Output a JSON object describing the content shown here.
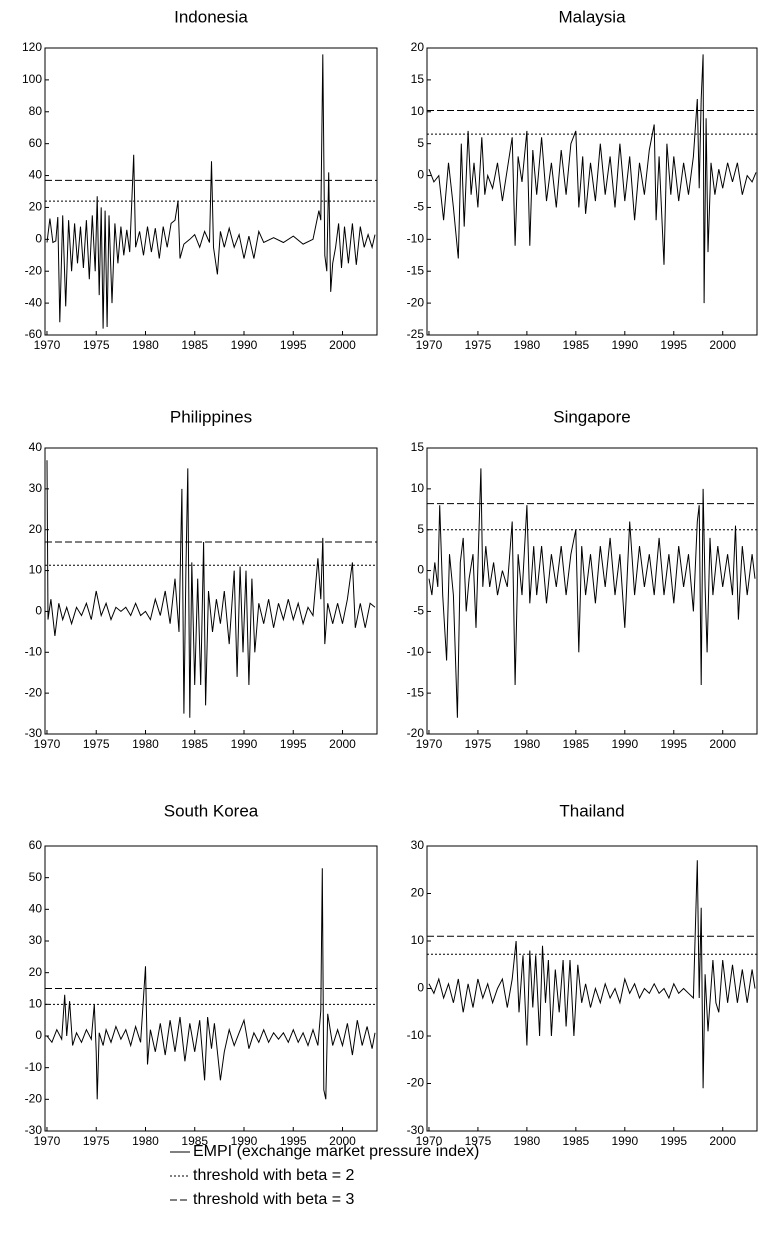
{
  "legend_entries": [
    "EMPI (exchange market pressure index)",
    "threshold with beta = 2",
    "threshold with beta = 3"
  ],
  "color": "#000000",
  "chart_data": [
    {
      "type": "line",
      "title": "Indonesia",
      "xlim": [
        1969.8,
        2003.5
      ],
      "xticks": [
        1970,
        1975,
        1980,
        1985,
        1990,
        1995,
        2000
      ],
      "ylim": [
        -60,
        120
      ],
      "yticks": [
        -60,
        -40,
        -20,
        0,
        20,
        40,
        60,
        80,
        100,
        120
      ],
      "threshold_beta2": 24,
      "threshold_beta3": 37,
      "x": [
        1970.0,
        1970.3,
        1970.6,
        1970.9,
        1971.1,
        1971.3,
        1971.6,
        1971.9,
        1972.2,
        1972.5,
        1972.8,
        1973.1,
        1973.4,
        1973.7,
        1974.0,
        1974.3,
        1974.6,
        1974.9,
        1975.1,
        1975.3,
        1975.5,
        1975.7,
        1975.9,
        1976.1,
        1976.3,
        1976.6,
        1976.9,
        1977.2,
        1977.5,
        1977.8,
        1978.1,
        1978.4,
        1978.8,
        1979.0,
        1979.4,
        1979.8,
        1980.2,
        1980.6,
        1981.0,
        1981.4,
        1981.8,
        1982.2,
        1982.6,
        1983.0,
        1983.3,
        1983.5,
        1983.9,
        1984.5,
        1985.0,
        1985.5,
        1986.0,
        1986.5,
        1986.7,
        1986.9,
        1987.3,
        1987.6,
        1988.0,
        1988.5,
        1989.0,
        1989.5,
        1990.0,
        1990.5,
        1991.0,
        1991.5,
        1992.0,
        1993.0,
        1994.0,
        1995.0,
        1996.0,
        1997.0,
        1997.6,
        1997.8,
        1998.0,
        1998.2,
        1998.4,
        1998.6,
        1998.8,
        1999.0,
        1999.3,
        1999.6,
        1999.9,
        2000.2,
        2000.6,
        2001.0,
        2001.4,
        2001.8,
        2002.2,
        2002.6,
        2003.0,
        2003.3
      ],
      "values": [
        -2,
        13,
        -2,
        -1,
        14,
        -52,
        15,
        -42,
        12,
        -20,
        10,
        -15,
        8,
        -18,
        12,
        -25,
        15,
        -20,
        27,
        -35,
        20,
        -56,
        18,
        -55,
        15,
        -40,
        10,
        -15,
        8,
        -10,
        6,
        -8,
        53,
        -5,
        5,
        -10,
        8,
        -8,
        7,
        -12,
        8,
        -5,
        10,
        12,
        24,
        -12,
        -3,
        0,
        3,
        -5,
        5,
        -2,
        49,
        -5,
        -22,
        5,
        -5,
        7,
        -5,
        3,
        -12,
        2,
        -12,
        5,
        -2,
        1,
        -2,
        2,
        -3,
        0,
        18,
        12,
        116,
        -10,
        -20,
        42,
        -33,
        -15,
        -5,
        10,
        -18,
        8,
        -15,
        10,
        -16,
        8,
        -5,
        3,
        -5,
        3
      ]
    },
    {
      "type": "line",
      "title": "Malaysia",
      "xlim": [
        1969.8,
        2003.5
      ],
      "xticks": [
        1970,
        1975,
        1980,
        1985,
        1990,
        1995,
        2000
      ],
      "ylim": [
        -25,
        20
      ],
      "yticks": [
        -25,
        -20,
        -15,
        -10,
        -5,
        0,
        5,
        10,
        15,
        20
      ],
      "threshold_beta2": 6.5,
      "threshold_beta3": 10.2,
      "x": [
        1970,
        1970.5,
        1971,
        1971.5,
        1972,
        1972.5,
        1973,
        1973.3,
        1973.6,
        1974,
        1974.3,
        1974.6,
        1975,
        1975.4,
        1975.7,
        1976,
        1976.5,
        1977,
        1977.5,
        1978,
        1978.5,
        1978.8,
        1979.1,
        1979.5,
        1980,
        1980.3,
        1980.6,
        1981,
        1981.5,
        1982,
        1982.5,
        1983,
        1983.5,
        1984,
        1984.5,
        1985,
        1985.3,
        1985.7,
        1986,
        1986.5,
        1987,
        1987.5,
        1988,
        1988.5,
        1989,
        1989.5,
        1990,
        1990.5,
        1991,
        1991.5,
        1992,
        1992.5,
        1993,
        1993.2,
        1993.5,
        1994,
        1994.3,
        1994.7,
        1995,
        1995.5,
        1996,
        1996.5,
        1997,
        1997.4,
        1997.6,
        1997.8,
        1998,
        1998.1,
        1998.3,
        1998.5,
        1998.8,
        1999.2,
        1999.6,
        2000,
        2000.5,
        2001,
        2001.5,
        2002,
        2002.5,
        2003,
        2003.4
      ],
      "values": [
        1,
        -1,
        0,
        -7,
        2,
        -5,
        -13,
        5,
        -8,
        7,
        -3,
        2,
        -5,
        6,
        -3,
        0,
        -2,
        2,
        -4,
        1,
        6,
        -11,
        3,
        -1,
        7,
        -11,
        4,
        -3,
        6,
        -4,
        2,
        -5,
        4,
        -3,
        5,
        7,
        -5,
        3,
        -6,
        2,
        -4,
        5,
        -3,
        3,
        -5,
        5,
        -4,
        3,
        -7,
        2,
        -3,
        4,
        8,
        -7,
        3,
        -14,
        5,
        -3,
        3,
        -4,
        2,
        -3,
        3,
        12,
        -2,
        12,
        19,
        -20,
        9,
        -12,
        2,
        -3,
        1,
        -2,
        2,
        -1,
        2,
        -3,
        0,
        -1,
        0.5
      ]
    },
    {
      "type": "line",
      "title": "Philippines",
      "xlim": [
        1969.8,
        2003.5
      ],
      "xticks": [
        1970,
        1975,
        1980,
        1985,
        1990,
        1995,
        2000
      ],
      "ylim": [
        -30,
        40
      ],
      "yticks": [
        -30,
        -20,
        -10,
        0,
        10,
        20,
        30,
        40
      ],
      "threshold_beta2": 11.3,
      "threshold_beta3": 17,
      "x": [
        1970,
        1970.1,
        1970.4,
        1970.8,
        1971.2,
        1971.6,
        1972,
        1972.5,
        1973,
        1973.5,
        1974,
        1974.5,
        1975,
        1975.5,
        1976,
        1976.5,
        1977,
        1977.5,
        1978,
        1978.5,
        1979,
        1979.5,
        1980,
        1980.5,
        1981,
        1981.5,
        1982,
        1982.5,
        1983,
        1983.4,
        1983.7,
        1983.9,
        1984.1,
        1984.3,
        1984.5,
        1984.7,
        1985,
        1985.3,
        1985.6,
        1985.9,
        1986.1,
        1986.4,
        1986.8,
        1987.2,
        1987.6,
        1988,
        1988.5,
        1989,
        1989.3,
        1989.6,
        1989.9,
        1990.2,
        1990.5,
        1990.8,
        1991.1,
        1991.5,
        1992,
        1992.5,
        1993,
        1993.5,
        1994,
        1994.5,
        1995,
        1995.5,
        1996,
        1996.5,
        1997,
        1997.5,
        1997.8,
        1998,
        1998.2,
        1998.5,
        1999,
        1999.5,
        2000,
        2000.5,
        2001,
        2001.3,
        2001.8,
        2002.3,
        2002.8,
        2003.3
      ],
      "values": [
        37,
        -2,
        3,
        -6,
        2,
        -2,
        1,
        -3,
        1,
        -1,
        2,
        -2,
        5,
        -1,
        2,
        -2,
        1,
        0,
        1,
        -1,
        2,
        -1,
        0,
        -2,
        3,
        -1,
        5,
        -3,
        8,
        -5,
        30,
        -25,
        10,
        35,
        -26,
        12,
        -18,
        8,
        -18,
        17,
        -23,
        5,
        -5,
        3,
        -3,
        5,
        -8,
        10,
        -16,
        11,
        -10,
        10,
        -18,
        8,
        -10,
        2,
        -3,
        3,
        -4,
        2,
        -2,
        3,
        -2,
        2,
        -3,
        1,
        -1,
        13,
        3,
        18,
        -8,
        2,
        -3,
        2,
        -3,
        3,
        12,
        -4,
        2,
        -4,
        2,
        1
      ]
    },
    {
      "type": "line",
      "title": "Singapore",
      "xlim": [
        1969.8,
        2003.5
      ],
      "xticks": [
        1970,
        1975,
        1980,
        1985,
        1990,
        1995,
        2000
      ],
      "ylim": [
        -20,
        15
      ],
      "yticks": [
        -20,
        -15,
        -10,
        -5,
        0,
        5,
        10,
        15
      ],
      "threshold_beta2": 5,
      "threshold_beta3": 8.2,
      "x": [
        1970,
        1970.3,
        1970.6,
        1970.9,
        1971.1,
        1971.4,
        1971.8,
        1972.1,
        1972.5,
        1972.9,
        1973.2,
        1973.5,
        1973.8,
        1974.1,
        1974.5,
        1974.8,
        1975.3,
        1975.5,
        1975.8,
        1976.2,
        1976.6,
        1977,
        1977.5,
        1978,
        1978.5,
        1978.8,
        1979.1,
        1979.5,
        1980,
        1980.3,
        1980.7,
        1981,
        1981.5,
        1982,
        1982.5,
        1983,
        1983.5,
        1984,
        1984.5,
        1985,
        1985.3,
        1985.6,
        1986,
        1986.5,
        1987,
        1987.5,
        1988,
        1988.5,
        1989,
        1989.5,
        1990,
        1990.5,
        1991,
        1991.5,
        1992,
        1992.5,
        1993,
        1993.5,
        1994,
        1994.5,
        1995,
        1995.5,
        1996,
        1996.5,
        1997,
        1997.4,
        1997.6,
        1997.8,
        1998,
        1998.2,
        1998.4,
        1998.7,
        1999,
        1999.5,
        2000,
        2000.5,
        2001,
        2001.3,
        2001.6,
        2002,
        2002.5,
        2003,
        2003.3
      ],
      "values": [
        -1,
        -3,
        1,
        -2,
        8,
        -3,
        -11,
        2,
        -3,
        -18,
        1,
        4,
        -5,
        -1,
        2,
        -7,
        12.5,
        -2,
        3,
        -2,
        1,
        -3,
        0,
        -2,
        6,
        -14,
        2,
        -3,
        8,
        -4,
        3,
        -3,
        3,
        -4,
        2,
        -2,
        3,
        -3,
        2,
        5,
        -10,
        3,
        -3,
        2,
        -4,
        3,
        -2,
        4,
        -3,
        2,
        -7,
        6,
        -3,
        3,
        -2,
        2,
        -3,
        4,
        -3,
        2,
        -4,
        3,
        -2,
        2,
        -5,
        6,
        8,
        -14,
        10,
        -2,
        -10,
        4,
        -3,
        3,
        -2,
        2,
        -3,
        5.5,
        -6,
        3,
        -3,
        2,
        -1
      ]
    },
    {
      "type": "line",
      "title": "South Korea",
      "xlim": [
        1969.8,
        2003.5
      ],
      "xticks": [
        1970,
        1975,
        1980,
        1985,
        1990,
        1995,
        2000
      ],
      "ylim": [
        -30,
        60
      ],
      "yticks": [
        -30,
        -20,
        -10,
        0,
        10,
        20,
        30,
        40,
        50,
        60
      ],
      "threshold_beta2": 10,
      "threshold_beta3": 15,
      "x": [
        1970,
        1970.5,
        1971,
        1971.5,
        1971.8,
        1972,
        1972.3,
        1972.6,
        1973,
        1973.5,
        1974,
        1974.5,
        1974.8,
        1975,
        1975.1,
        1975.3,
        1975.7,
        1976,
        1976.5,
        1977,
        1977.5,
        1978,
        1978.5,
        1979,
        1979.5,
        1980,
        1980.2,
        1980.5,
        1981,
        1981.5,
        1982,
        1982.5,
        1983,
        1983.5,
        1984,
        1984.5,
        1985,
        1985.5,
        1986,
        1986.3,
        1986.7,
        1987,
        1987.6,
        1988,
        1988.5,
        1989,
        1989.5,
        1990,
        1990.5,
        1991,
        1991.5,
        1992,
        1992.5,
        1993,
        1993.5,
        1994,
        1994.5,
        1995,
        1995.5,
        1996,
        1996.5,
        1997,
        1997.5,
        1997.8,
        1997.95,
        1998.1,
        1998.3,
        1998.5,
        1999,
        1999.5,
        2000,
        2000.5,
        2001,
        2001.5,
        2002,
        2002.5,
        2003,
        2003.3
      ],
      "values": [
        0,
        -2,
        2,
        -1,
        13,
        0,
        11,
        -3,
        1,
        -2,
        2,
        -1,
        10,
        -5,
        -20,
        1,
        -3,
        2,
        -2,
        3,
        -1,
        2,
        -3,
        3,
        -2,
        22,
        -9,
        2,
        -5,
        4,
        -6,
        5,
        -5,
        6,
        -8,
        4,
        -5,
        5,
        -14,
        6,
        -4,
        4,
        -14,
        -5,
        2,
        -3,
        1,
        5,
        -4,
        1,
        -2,
        2,
        -2,
        1,
        -1,
        1,
        -2,
        2,
        -2,
        1,
        -3,
        2,
        -3,
        8,
        53,
        -17,
        -20,
        7,
        -3,
        2,
        -3,
        4,
        -6,
        5,
        -3,
        3,
        -4,
        1
      ]
    },
    {
      "type": "line",
      "title": "Thailand",
      "xlim": [
        1969.8,
        2003.5
      ],
      "xticks": [
        1970,
        1975,
        1980,
        1985,
        1990,
        1995,
        2000
      ],
      "ylim": [
        -30,
        30
      ],
      "yticks": [
        -30,
        -20,
        -10,
        0,
        10,
        20,
        30
      ],
      "threshold_beta2": 7.2,
      "threshold_beta3": 11,
      "x": [
        1970,
        1970.5,
        1971,
        1971.5,
        1972,
        1972.5,
        1973,
        1973.5,
        1974,
        1974.5,
        1975,
        1975.5,
        1976,
        1976.5,
        1977,
        1977.5,
        1978,
        1978.5,
        1978.9,
        1979.2,
        1979.6,
        1980,
        1980.3,
        1980.6,
        1980.9,
        1981.3,
        1981.6,
        1981.9,
        1982.2,
        1982.5,
        1982.9,
        1983.3,
        1983.7,
        1984,
        1984.4,
        1984.8,
        1985.2,
        1985.6,
        1986,
        1986.5,
        1987,
        1987.5,
        1988,
        1988.5,
        1989,
        1989.5,
        1990,
        1990.5,
        1991,
        1991.5,
        1992,
        1992.5,
        1993,
        1993.5,
        1994,
        1994.5,
        1995,
        1995.5,
        1996,
        1996.5,
        1997,
        1997.4,
        1997.6,
        1997.8,
        1998,
        1998.2,
        1998.5,
        1999,
        1999.3,
        1999.6,
        2000,
        2000.5,
        2001,
        2001.5,
        2002,
        2002.5,
        2003,
        2003.3
      ],
      "values": [
        1,
        -1,
        2,
        -2,
        1,
        -3,
        2,
        -5,
        1,
        -4,
        2,
        -2,
        1,
        -3,
        0,
        2,
        -4,
        2,
        10,
        -5,
        7,
        -12,
        8,
        -4,
        7,
        -10,
        9,
        -3,
        6,
        -10,
        4,
        -5,
        6,
        -8,
        6,
        -10,
        5,
        -3,
        1,
        -4,
        0,
        -3,
        1,
        -2,
        0,
        -3,
        2,
        -1,
        1,
        -2,
        0,
        -1,
        1,
        -1,
        0,
        -2,
        1,
        -1,
        0,
        -1,
        -2,
        27,
        -2,
        17,
        -21,
        3,
        -9,
        6,
        -3,
        -5,
        6,
        -3,
        5,
        -3,
        4,
        -3,
        4,
        0
      ]
    }
  ]
}
